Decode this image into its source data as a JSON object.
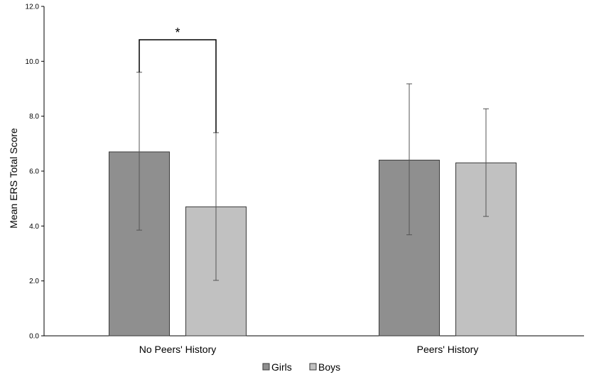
{
  "chart_data": {
    "type": "bar",
    "title": "",
    "xlabel": "",
    "ylabel": "Mean ERS Total Score",
    "ylim": [
      0,
      12
    ],
    "yticks": [
      "0.0",
      "2.0",
      "4.0",
      "6.0",
      "8.0",
      "10.0",
      "12.0"
    ],
    "categories": [
      "No Peers' History",
      "Peers' History"
    ],
    "series": [
      {
        "name": "Girls",
        "color": "#8f8f8f",
        "values": [
          6.7,
          6.4
        ],
        "err_low": [
          3.85,
          3.68
        ],
        "err_high": [
          9.6,
          9.18
        ]
      },
      {
        "name": "Boys",
        "color": "#c1c1c1",
        "values": [
          4.7,
          6.3
        ],
        "err_low": [
          2.02,
          4.35
        ],
        "err_high": [
          7.4,
          8.27
        ]
      }
    ],
    "significance": [
      {
        "category": "No Peers' History",
        "between": [
          "Girls",
          "Boys"
        ],
        "label": "*"
      }
    ],
    "grid": false,
    "legend": "bottom-center"
  }
}
